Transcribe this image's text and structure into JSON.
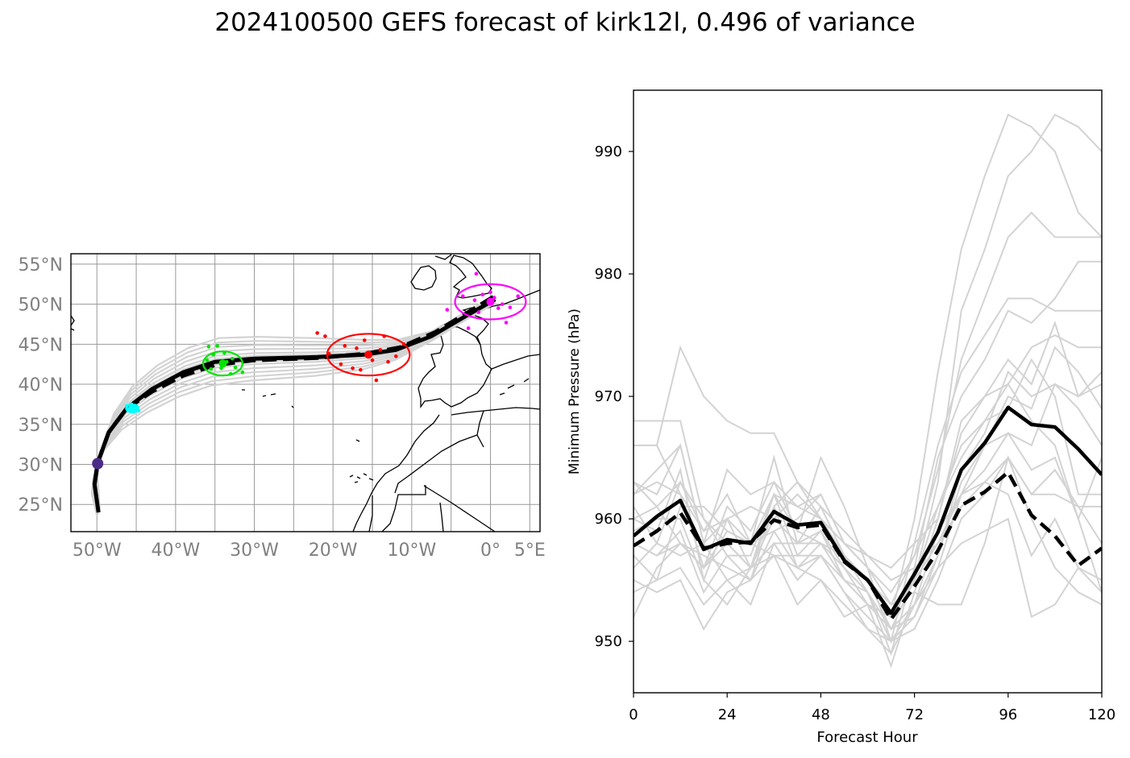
{
  "title": "2024100500 GEFS forecast of kirk12l, 0.496 of variance",
  "colors": {
    "ensemble": "#d3d3d3",
    "mean": "#000000",
    "grid": "#999999",
    "coast": "#000000",
    "tick_label_map": "#808080",
    "t0": "#4b2a8a",
    "t24": "#00ffff",
    "t48": "#00e400",
    "t72": "#ff0000",
    "t96": "#ff00ff"
  },
  "chart_data": [
    {
      "type": "line",
      "subtype": "track-map",
      "xlabel": "",
      "ylabel": "",
      "xlim": [
        -53.3,
        6.3
      ],
      "ylim": [
        21.6,
        56.3
      ],
      "grid": true,
      "x_ticks": [
        -50,
        -40,
        -30,
        -20,
        -10,
        0,
        5
      ],
      "x_tick_labels": [
        "50°W",
        "40°W",
        "30°W",
        "20°W",
        "10°W",
        "0°",
        "5°E"
      ],
      "y_ticks": [
        25,
        30,
        35,
        40,
        45,
        50,
        55
      ],
      "y_tick_labels": [
        "25°N",
        "30°N",
        "35°N",
        "40°N",
        "45°N",
        "50°N",
        "55°N"
      ],
      "series": [
        {
          "style": "mean-solid",
          "points": [
            [
              -49.8,
              24.0
            ],
            [
              -50.3,
              27.5
            ],
            [
              -49.9,
              30.2
            ],
            [
              -48.5,
              34.0
            ],
            [
              -46.2,
              37.0
            ],
            [
              -43.0,
              39.4
            ],
            [
              -39.0,
              41.5
            ],
            [
              -35.0,
              42.8
            ],
            [
              -30.0,
              43.2
            ],
            [
              -22.0,
              43.4
            ],
            [
              -16.0,
              43.7
            ],
            [
              -12.0,
              44.3
            ],
            [
              -7.5,
              46.0
            ],
            [
              -3.0,
              48.6
            ],
            [
              0.6,
              50.6
            ]
          ]
        },
        {
          "style": "mean-dashed",
          "points": [
            [
              -50.3,
              27.5
            ],
            [
              -49.9,
              30.2
            ],
            [
              -48.5,
              34.0
            ],
            [
              -46.3,
              36.9
            ],
            [
              -43.0,
              39.1
            ],
            [
              -39.0,
              41.1
            ],
            [
              -35.0,
              42.4
            ],
            [
              -30.0,
              43.0
            ],
            [
              -22.0,
              43.3
            ],
            [
              -16.0,
              43.8
            ],
            [
              -11.5,
              44.6
            ],
            [
              -7.0,
              46.5
            ],
            [
              -3.0,
              48.9
            ],
            [
              0.5,
              51.0
            ]
          ]
        }
      ],
      "ensemble_offsets_deg": [
        -1.6,
        -1.3,
        -1.0,
        -0.7,
        -0.4,
        -0.2,
        0.2,
        0.4,
        0.7,
        1.0,
        1.3,
        1.6
      ],
      "positions": [
        {
          "hour": 0,
          "color_key": "t0",
          "center": [
            -49.9,
            30.1
          ],
          "scatter": [
            [
              -50.1,
              29.8
            ],
            [
              -49.8,
              30.5
            ],
            [
              -49.7,
              30.0
            ],
            [
              -50.0,
              30.3
            ],
            [
              -49.9,
              29.6
            ],
            [
              -49.6,
              30.4
            ]
          ]
        },
        {
          "hour": 24,
          "color_key": "t24",
          "center": [
            -45.5,
            37.0
          ],
          "scatter": [
            [
              -46.2,
              37.3
            ],
            [
              -45.6,
              37.5
            ],
            [
              -45.0,
              36.9
            ],
            [
              -44.7,
              36.7
            ],
            [
              -45.4,
              36.6
            ],
            [
              -46.0,
              36.9
            ],
            [
              -44.9,
              37.2
            ],
            [
              -45.3,
              37.1
            ]
          ],
          "ellipse": {
            "width": 1.6,
            "height": 1.0
          }
        },
        {
          "hour": 48,
          "color_key": "t48",
          "center": [
            -34.0,
            42.6
          ],
          "scatter": [
            [
              -35.8,
              44.7
            ],
            [
              -34.7,
              44.8
            ],
            [
              -33.0,
              41.3
            ],
            [
              -31.5,
              41.5
            ],
            [
              -35.2,
              43.7
            ],
            [
              -33.5,
              42.8
            ],
            [
              -32.8,
              43.2
            ],
            [
              -34.2,
              42.0
            ],
            [
              -35.5,
              41.9
            ],
            [
              -32.4,
              42.1
            ],
            [
              -36.0,
              43.0
            ],
            [
              -33.8,
              43.9
            ]
          ],
          "ellipse": {
            "width": 5.0,
            "height": 3.0
          }
        },
        {
          "hour": 72,
          "color_key": "t72",
          "center": [
            -15.5,
            43.7
          ],
          "scatter": [
            [
              -22.0,
              46.4
            ],
            [
              -21.0,
              46.0
            ],
            [
              -20.5,
              43.8
            ],
            [
              -19.0,
              42.5
            ],
            [
              -17.0,
              44.5
            ],
            [
              -16.0,
              45.5
            ],
            [
              -14.0,
              44.3
            ],
            [
              -13.5,
              46.0
            ],
            [
              -14.5,
              40.5
            ],
            [
              -12.0,
              43.5
            ],
            [
              -11.0,
              45.0
            ],
            [
              -17.5,
              42.0
            ],
            [
              -15.0,
              43.0
            ],
            [
              -18.5,
              44.8
            ],
            [
              -13.0,
              42.8
            ],
            [
              -16.5,
              41.8
            ]
          ],
          "ellipse": {
            "width": 10.5,
            "height": 5.2
          }
        },
        {
          "hour": 96,
          "color_key": "t96",
          "center": [
            0.0,
            50.3
          ],
          "scatter": [
            [
              -5.5,
              49.3
            ],
            [
              -3.5,
              51.0
            ],
            [
              -2.0,
              50.5
            ],
            [
              -1.5,
              49.0
            ],
            [
              0.0,
              51.5
            ],
            [
              1.5,
              50.0
            ],
            [
              2.5,
              49.6
            ],
            [
              3.5,
              51.0
            ],
            [
              2.0,
              47.7
            ],
            [
              -1.8,
              53.8
            ],
            [
              -2.8,
              47.0
            ],
            [
              0.5,
              50.8
            ],
            [
              -1.0,
              51.2
            ],
            [
              1.0,
              49.5
            ]
          ],
          "ellipse": {
            "width": 9.0,
            "height": 4.4
          }
        }
      ]
    },
    {
      "type": "line",
      "xlabel": "Forecast Hour",
      "ylabel": "Minimum Pressure (hPa)",
      "xlim": [
        0,
        120
      ],
      "ylim": [
        945.8,
        995.0
      ],
      "x_ticks": [
        0,
        24,
        48,
        72,
        96,
        120
      ],
      "y_ticks": [
        950,
        960,
        970,
        980,
        990
      ],
      "grid": false,
      "hours": [
        0,
        6,
        12,
        18,
        24,
        30,
        36,
        42,
        48,
        54,
        60,
        66,
        72,
        78,
        84,
        90,
        96,
        102,
        108,
        114,
        120
      ],
      "series": [
        {
          "style": "mean-solid",
          "values": [
            958.6,
            960.2,
            961.5,
            957.5,
            958.3,
            958.0,
            960.6,
            959.5,
            959.7,
            956.6,
            955.0,
            952.3,
            955.5,
            958.9,
            964.0,
            966.2,
            969.1,
            967.7,
            967.5,
            965.7,
            963.6
          ]
        },
        {
          "style": "mean-dashed",
          "values": [
            957.8,
            959.0,
            960.5,
            957.6,
            958.0,
            958.1,
            959.9,
            959.3,
            959.5,
            956.5,
            955.0,
            951.8,
            954.5,
            957.4,
            961.1,
            962.2,
            963.8,
            960.3,
            958.6,
            956.2,
            957.6
          ]
        }
      ],
      "ensemble": [
        [
          968,
          968,
          968,
          960,
          958,
          956,
          960,
          962,
          960,
          957,
          955,
          952,
          960,
          972,
          982,
          988,
          993,
          992,
          990,
          985,
          983
        ],
        [
          966,
          966,
          974,
          970,
          968,
          967,
          967,
          963,
          960,
          957,
          955,
          951,
          955,
          963,
          977,
          982,
          988,
          990,
          993,
          992,
          990
        ],
        [
          963,
          962,
          966,
          958,
          964,
          962,
          963,
          961,
          962,
          958,
          956,
          953,
          957,
          964,
          973,
          978,
          983,
          985,
          983,
          983,
          983
        ],
        [
          962,
          963,
          962,
          956,
          961,
          959,
          963,
          959,
          965,
          961,
          956,
          950,
          958,
          966,
          972,
          975,
          978,
          978,
          977,
          977,
          977
        ],
        [
          960,
          959,
          964,
          955,
          960,
          958,
          965,
          958,
          961,
          957,
          954,
          949,
          956,
          965,
          970,
          973,
          977,
          976,
          978,
          981,
          981
        ],
        [
          958,
          957,
          959,
          954,
          957,
          957,
          962,
          957,
          959,
          956,
          953,
          948,
          954,
          960,
          967,
          970,
          973,
          971,
          976,
          970,
          971
        ],
        [
          957,
          955,
          956,
          953,
          955,
          953,
          958,
          955,
          957,
          954,
          952,
          950,
          952,
          957,
          963,
          966,
          970,
          969,
          974,
          972,
          969
        ],
        [
          955,
          954,
          955,
          951,
          954,
          955,
          957,
          953,
          955,
          953,
          951,
          949,
          953,
          959,
          962,
          964,
          967,
          966,
          971,
          969,
          966
        ],
        [
          952,
          956,
          958,
          956,
          958,
          956,
          961,
          956,
          958,
          955,
          954,
          950,
          951,
          955,
          960,
          962,
          965,
          962,
          964,
          961,
          958
        ],
        [
          963,
          961,
          958,
          957,
          956,
          955,
          959,
          960,
          962,
          958,
          956,
          954,
          957,
          961,
          965,
          968,
          971,
          968,
          966,
          960,
          954
        ],
        [
          961,
          958,
          957,
          958,
          955,
          956,
          958,
          958,
          959,
          955,
          953,
          952,
          955,
          958,
          962,
          963,
          962,
          957,
          960,
          956,
          955
        ],
        [
          959,
          960,
          960,
          955,
          953,
          956,
          957,
          956,
          957,
          954,
          951,
          950,
          953,
          956,
          958,
          959,
          960,
          952,
          953,
          956,
          954
        ],
        [
          956,
          958,
          963,
          959,
          960,
          961,
          960,
          958,
          958,
          957,
          955,
          953,
          954,
          953,
          953,
          958,
          965,
          960,
          956,
          954,
          953
        ],
        [
          954,
          955,
          961,
          961,
          959,
          958,
          962,
          961,
          960,
          958,
          957,
          955,
          956,
          958,
          961,
          963,
          965,
          962,
          962,
          961,
          961
        ],
        [
          966,
          966,
          962,
          959,
          962,
          958,
          959,
          956,
          955,
          952,
          953,
          951,
          953,
          957,
          964,
          967,
          972,
          970,
          971,
          970,
          972
        ],
        [
          960,
          961,
          963,
          960,
          957,
          955,
          961,
          963,
          961,
          959,
          957,
          956,
          958,
          960,
          968,
          970,
          971,
          974,
          975,
          974,
          974
        ],
        [
          958,
          957,
          958,
          956,
          959,
          958,
          957,
          957,
          957,
          955,
          953,
          952,
          955,
          961,
          966,
          968,
          969,
          973,
          970,
          962,
          962
        ],
        [
          962,
          964,
          966,
          958,
          960,
          956,
          962,
          959,
          958,
          956,
          954,
          951,
          952,
          956,
          962,
          966,
          967,
          964,
          965,
          960,
          965
        ]
      ]
    }
  ]
}
